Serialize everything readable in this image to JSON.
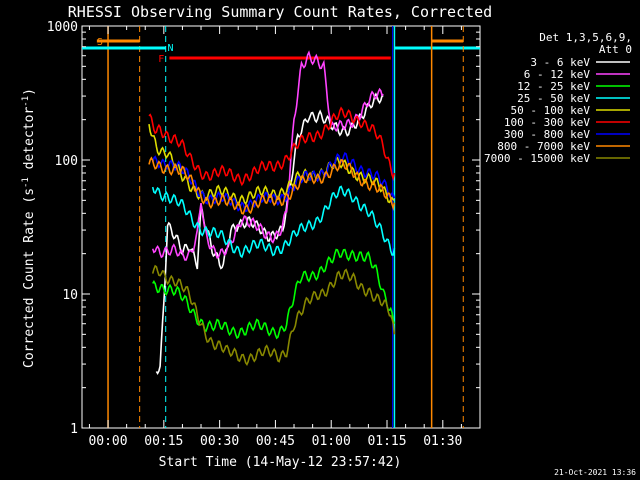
{
  "chart_data": {
    "type": "line",
    "title": "RHESSI Observing Summary Count Rates, Corrected",
    "xlabel": "Start Time (14-May-12 23:57:42)",
    "ylabel": "Corrected Count Rate (s",
    "ylabel_sup": "-1",
    "ylabel_tail": " detector",
    "ylabel_sup2": "-1",
    "ylabel_close": ")",
    "y_scale": "log",
    "ylim": [
      1,
      1000
    ],
    "xlim_minutes": [
      -7,
      100
    ],
    "x_ticks": [
      {
        "minutes": 0,
        "label": "00:00"
      },
      {
        "minutes": 15,
        "label": "00:15"
      },
      {
        "minutes": 30,
        "label": "00:30"
      },
      {
        "minutes": 45,
        "label": "00:45"
      },
      {
        "minutes": 60,
        "label": "01:00"
      },
      {
        "minutes": 75,
        "label": "01:15"
      },
      {
        "minutes": 90,
        "label": "01:30"
      }
    ],
    "y_ticks": [
      {
        "value": 1,
        "label": "1"
      },
      {
        "value": 10,
        "label": "10"
      },
      {
        "value": 100,
        "label": "100"
      },
      {
        "value": 1000,
        "label": "1000"
      }
    ],
    "legend": {
      "header1": "Det 1,3,5,6,9,",
      "header2": "Att 0",
      "placement": "right"
    },
    "series": [
      {
        "name": "3 - 6 keV",
        "color": "#ffffff",
        "x": [
          13,
          14,
          15,
          16,
          18,
          20,
          22,
          24,
          25,
          26,
          28,
          30,
          31,
          33,
          35,
          38,
          40,
          43,
          45,
          47,
          49,
          51,
          54,
          57,
          60,
          62,
          64,
          66,
          68,
          70,
          72,
          74
        ],
        "y": [
          3,
          3,
          9,
          32,
          25,
          20,
          24,
          18,
          45,
          35,
          20,
          16,
          16,
          32,
          35,
          33,
          30,
          28,
          30,
          31,
          60,
          140,
          230,
          220,
          170,
          160,
          170,
          195,
          210,
          230,
          270,
          300
        ]
      },
      {
        "name": "6 - 12 keV",
        "color": "#ff44ff",
        "x": [
          12,
          14,
          16,
          18,
          20,
          22,
          24,
          25,
          26,
          28,
          30,
          32,
          34,
          36,
          38,
          40,
          42,
          44,
          46,
          48,
          50,
          52,
          54,
          56,
          58,
          60,
          62,
          64,
          66,
          68,
          70,
          72,
          74
        ],
        "y": [
          24,
          22,
          21,
          20,
          18,
          20,
          30,
          55,
          30,
          20,
          18,
          22,
          30,
          38,
          33,
          30,
          28,
          28,
          30,
          40,
          180,
          480,
          620,
          600,
          500,
          160,
          170,
          190,
          210,
          230,
          260,
          290,
          310
        ]
      },
      {
        "name": "12 - 25 keV",
        "color": "#00ff00",
        "x": [
          12,
          14,
          16,
          18,
          20,
          22,
          24,
          26,
          28,
          30,
          32,
          34,
          36,
          38,
          40,
          42,
          44,
          46,
          48,
          50,
          52,
          54,
          56,
          58,
          60,
          62,
          64,
          66,
          68,
          70,
          72,
          74,
          75,
          76,
          77
        ],
        "y": [
          12,
          12,
          11,
          10,
          9,
          8,
          7,
          6,
          5.5,
          5.5,
          5.5,
          5.5,
          5.5,
          5.5,
          5.5,
          5.5,
          5.5,
          5.5,
          6,
          9,
          13,
          14,
          15,
          16,
          17,
          19,
          20,
          21,
          20,
          18,
          14,
          10,
          9,
          8,
          6
        ]
      },
      {
        "name": "25 - 50 keV",
        "color": "#00ffff",
        "x": [
          12,
          14,
          16,
          18,
          20,
          22,
          24,
          26,
          28,
          30,
          32,
          34,
          36,
          38,
          40,
          42,
          44,
          46,
          48,
          50,
          52,
          54,
          56,
          58,
          60,
          62,
          64,
          66,
          68,
          70,
          72,
          74,
          75,
          76,
          77
        ],
        "y": [
          65,
          60,
          55,
          48,
          43,
          38,
          34,
          31,
          28,
          26,
          24,
          23,
          22,
          22,
          22,
          22,
          22,
          23,
          24,
          26,
          29,
          33,
          37,
          42,
          48,
          54,
          58,
          56,
          48,
          40,
          32,
          27,
          25,
          23,
          22
        ]
      },
      {
        "name": "50 - 100 keV",
        "color": "#dddd00",
        "x": [
          11,
          12,
          13,
          14,
          16,
          18,
          20,
          22,
          24,
          26,
          28,
          30,
          32,
          34,
          36,
          38,
          40,
          42,
          44,
          46,
          48,
          50,
          52,
          54,
          56,
          58,
          60,
          62,
          64,
          66,
          68,
          70,
          72,
          74,
          76,
          77
        ],
        "y": [
          180,
          150,
          130,
          125,
          120,
          90,
          70,
          62,
          60,
          58,
          56,
          55,
          54,
          54,
          54,
          54,
          54,
          55,
          57,
          60,
          63,
          67,
          72,
          77,
          82,
          86,
          88,
          89,
          88,
          85,
          80,
          72,
          63,
          57,
          52,
          50
        ]
      },
      {
        "name": "100 - 300 keV",
        "color": "#ff0000",
        "x": [
          11,
          12,
          13,
          14,
          16,
          18,
          20,
          22,
          24,
          26,
          28,
          30,
          32,
          34,
          36,
          38,
          40,
          42,
          44,
          46,
          48,
          50,
          52,
          54,
          56,
          58,
          60,
          62,
          64,
          66,
          68,
          70,
          72,
          74,
          75,
          76,
          77
        ],
        "y": [
          200,
          180,
          170,
          180,
          160,
          140,
          120,
          100,
          90,
          82,
          78,
          77,
          77,
          77,
          77,
          78,
          80,
          84,
          90,
          98,
          107,
          118,
          130,
          145,
          160,
          175,
          190,
          205,
          215,
          215,
          205,
          180,
          150,
          120,
          100,
          90,
          80
        ]
      },
      {
        "name": "300 - 800 keV",
        "color": "#0000ff",
        "x": [
          12,
          14,
          16,
          18,
          20,
          22,
          24,
          26,
          28,
          30,
          32,
          34,
          36,
          38,
          40,
          42,
          44,
          46,
          48,
          50,
          52,
          54,
          56,
          58,
          60,
          62,
          64,
          66,
          68,
          70,
          72,
          74,
          76,
          77
        ],
        "y": [
          95,
          100,
          100,
          92,
          80,
          70,
          62,
          56,
          52,
          50,
          48,
          48,
          48,
          48,
          48,
          49,
          51,
          54,
          58,
          63,
          68,
          74,
          80,
          86,
          92,
          96,
          98,
          96,
          90,
          82,
          72,
          63,
          56,
          52
        ]
      },
      {
        "name": "800 - 7000 keV",
        "color": "#ff8800",
        "x": [
          11,
          12,
          14,
          16,
          18,
          20,
          22,
          24,
          26,
          28,
          30,
          32,
          34,
          36,
          38,
          40,
          42,
          44,
          46,
          48,
          50,
          52,
          54,
          56,
          58,
          60,
          62,
          64,
          66,
          68,
          70,
          72,
          74,
          76,
          77
        ],
        "y": [
          88,
          90,
          92,
          92,
          88,
          78,
          68,
          60,
          54,
          50,
          48,
          46,
          46,
          46,
          46,
          46,
          47,
          49,
          52,
          56,
          60,
          65,
          70,
          75,
          80,
          84,
          86,
          86,
          82,
          76,
          68,
          60,
          54,
          50,
          48
        ]
      },
      {
        "name": "7000 - 15000 keV",
        "color": "#888800",
        "x": [
          12,
          14,
          16,
          18,
          20,
          22,
          24,
          26,
          28,
          30,
          32,
          34,
          36,
          38,
          40,
          42,
          44,
          46,
          48,
          50,
          52,
          54,
          56,
          58,
          60,
          62,
          64,
          66,
          68,
          70,
          72,
          74,
          76,
          77
        ],
        "y": [
          14,
          15,
          14,
          13,
          11,
          9,
          7,
          5.5,
          4.5,
          4,
          3.5,
          3.5,
          3.5,
          3.5,
          3.5,
          3.5,
          3.5,
          3.5,
          4,
          6,
          7,
          8.5,
          10,
          11,
          12,
          13,
          13,
          13,
          12,
          11,
          9,
          8,
          7,
          5
        ]
      }
    ],
    "annotations": [
      {
        "label": "S",
        "color": "#ff8800"
      },
      {
        "label": "N",
        "color": "#00ffff"
      },
      {
        "label": "F",
        "color": "#ff0000"
      }
    ]
  },
  "footer": {
    "date": "21-Oct-2021 13:36"
  }
}
